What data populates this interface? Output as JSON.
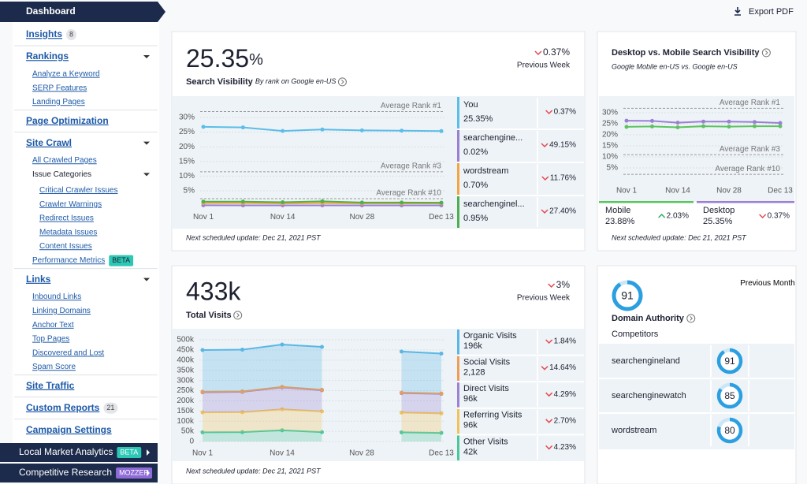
{
  "header": {
    "export": "Export PDF"
  },
  "sidebar": {
    "title": "Dashboard",
    "items": [
      {
        "label": "Insights",
        "badge": "8"
      },
      {
        "label": "Rankings",
        "children": [
          {
            "label": "Analyze a Keyword"
          },
          {
            "label": "SERP Features"
          },
          {
            "label": "Landing Pages"
          }
        ]
      },
      {
        "label": "Page Optimization"
      },
      {
        "label": "Site Crawl",
        "children": [
          {
            "label": "All Crawled Pages"
          },
          {
            "label": "Issue Categories",
            "children": [
              {
                "label": "Critical Crawler Issues"
              },
              {
                "label": "Crawler Warnings"
              },
              {
                "label": "Redirect Issues"
              },
              {
                "label": "Metadata Issues"
              },
              {
                "label": "Content Issues"
              }
            ]
          },
          {
            "label": "Performance Metrics",
            "badge": "BETA"
          }
        ]
      },
      {
        "label": "Links",
        "children": [
          {
            "label": "Inbound Links"
          },
          {
            "label": "Linking Domains"
          },
          {
            "label": "Anchor Text"
          },
          {
            "label": "Top Pages"
          },
          {
            "label": "Discovered and Lost"
          },
          {
            "label": "Spam Score"
          }
        ]
      },
      {
        "label": "Site Traffic"
      },
      {
        "label": "Custom Reports",
        "badge": "21"
      },
      {
        "label": "Campaign Settings"
      }
    ],
    "footer_items": [
      {
        "label": "Local Market Analytics",
        "badge": "BETA"
      },
      {
        "label": "Competitive Research",
        "badge": "MOZZER"
      }
    ]
  },
  "search_visibility": {
    "value": "25.35",
    "unit": "%",
    "title": "Search Visibility",
    "subtitle": "By rank on Google en-US",
    "change": "0.37%",
    "direction": "down",
    "change_period": "Previous Week",
    "footer": "Next scheduled update: Dec 21, 2021 PST",
    "chart": {
      "type": "line",
      "x": [
        "Nov 1",
        null,
        "Nov 14",
        null,
        "Nov 28",
        null,
        "Dec 13"
      ],
      "ylim": [
        0,
        35
      ],
      "yticks": [
        {
          "value": 5,
          "label": "5%"
        },
        {
          "value": 10,
          "label": "10%"
        },
        {
          "value": 15,
          "label": "15%"
        },
        {
          "value": 20,
          "label": "20%"
        },
        {
          "value": 25,
          "label": "25%"
        },
        {
          "value": 30,
          "label": "30%"
        }
      ],
      "reference_lines": [
        {
          "label": "Average Rank #1",
          "value": 32
        },
        {
          "label": "Average Rank #3",
          "value": 11.5
        },
        {
          "label": "Average Rank #10",
          "value": 2.3
        }
      ],
      "series": [
        {
          "name": "You",
          "color": "#5bbde8",
          "values": [
            26.8,
            26.6,
            25.4,
            25.9,
            25.6,
            25.5,
            25.35
          ],
          "summary": "25.35%",
          "change": "0.37%",
          "direction": "down"
        },
        {
          "name": "searchengine...",
          "color": "#9b7fd4",
          "values": [
            0.05,
            0.04,
            0.03,
            0.03,
            0.02,
            0.02,
            0.02
          ],
          "summary": "0.02%",
          "change": "49.15%",
          "direction": "down"
        },
        {
          "name": "wordstream",
          "color": "#f2a541",
          "values": [
            0.8,
            0.8,
            0.7,
            0.8,
            0.7,
            0.7,
            0.7
          ],
          "summary": "0.70%",
          "change": "11.76%",
          "direction": "down"
        },
        {
          "name": "searchenginel...",
          "color": "#4cb050",
          "values": [
            1.3,
            1.3,
            1.1,
            1.4,
            1.0,
            1.0,
            0.95
          ],
          "summary": "0.95%",
          "change": "27.40%",
          "direction": "down"
        }
      ]
    }
  },
  "desktop_mobile": {
    "title": "Desktop vs. Mobile Search Visibility",
    "subtitle": "Google Mobile en-US vs. Google en-US",
    "footer": "Next scheduled update: Dec 21, 2021 PST",
    "chart": {
      "type": "line",
      "x": [
        "Nov 1",
        null,
        "Nov 14",
        null,
        "Nov 28",
        null,
        "Dec 13"
      ],
      "ylim": [
        0,
        35
      ],
      "yticks": [
        {
          "value": 5,
          "label": "5%"
        },
        {
          "value": 10,
          "label": "10%"
        },
        {
          "value": 15,
          "label": "15%"
        },
        {
          "value": 20,
          "label": "20%"
        },
        {
          "value": 25,
          "label": "25%"
        },
        {
          "value": 30,
          "label": "30%"
        }
      ],
      "reference_lines": [
        {
          "label": "Average Rank #1",
          "value": 32
        },
        {
          "label": "Average Rank #3",
          "value": 11
        },
        {
          "label": "Average Rank #10",
          "value": 2.1
        }
      ],
      "series": [
        {
          "name": "Mobile",
          "color": "#5cc35f",
          "values": [
            23.6,
            23.8,
            23.4,
            23.9,
            23.7,
            23.9,
            23.88
          ],
          "summary": "23.88%",
          "change": "2.03%",
          "direction": "up"
        },
        {
          "name": "Desktop",
          "color": "#9b7fd4",
          "values": [
            26.4,
            26.3,
            25.5,
            26,
            26,
            25.8,
            25.35
          ],
          "summary": "25.35%",
          "change": "0.37%",
          "direction": "down"
        }
      ]
    }
  },
  "total_visits": {
    "value": "433k",
    "title": "Total Visits",
    "change": "3%",
    "direction": "down",
    "change_period": "Previous Week",
    "footer": "Next scheduled update: Dec 21, 2021 PST",
    "chart": {
      "type": "area",
      "stacked": true,
      "x": [
        "Nov 1",
        null,
        "Nov 14",
        null,
        "Nov 28",
        null,
        "Dec 13"
      ],
      "ylim": [
        0,
        540000
      ],
      "yticks": [
        0,
        {
          "value": 50000,
          "label": "50k"
        },
        {
          "value": 100000,
          "label": "100k"
        },
        {
          "value": 150000,
          "label": "150k"
        },
        {
          "value": 200000,
          "label": "200k"
        },
        {
          "value": 250000,
          "label": "250k"
        },
        {
          "value": 300000,
          "label": "300k"
        },
        {
          "value": 350000,
          "label": "350k"
        },
        {
          "value": 400000,
          "label": "400k"
        },
        {
          "value": 450000,
          "label": "450k"
        },
        {
          "value": 500000,
          "label": "500k"
        }
      ],
      "series": [
        {
          "name": "Organic Visits",
          "color": "#5ab6e4",
          "values": [
            205000,
            205000,
            208000,
            211000,
            null,
            202000,
            196000
          ],
          "summary": "196k",
          "change": "1.84%",
          "direction": "down"
        },
        {
          "name": "Social Visits",
          "color": "#ef9d56",
          "values": [
            2500,
            2400,
            2600,
            2300,
            null,
            2200,
            2128
          ],
          "summary": "2,128",
          "change": "14.64%",
          "direction": "down"
        },
        {
          "name": "Direct Visits",
          "color": "#9c82d3",
          "values": [
            99000,
            100000,
            108000,
            104000,
            null,
            96000,
            96000
          ],
          "summary": "96k",
          "change": "4.29%",
          "direction": "down"
        },
        {
          "name": "Referring Visits",
          "color": "#f0c35a",
          "values": [
            98000,
            98000,
            103000,
            102000,
            null,
            97000,
            96000
          ],
          "summary": "96k",
          "change": "2.70%",
          "direction": "down"
        },
        {
          "name": "Other Visits",
          "color": "#4cc79c",
          "values": [
            45000,
            46000,
            55000,
            46000,
            null,
            45000,
            42000
          ],
          "summary": "42k",
          "change": "4.23%",
          "direction": "down"
        }
      ]
    }
  },
  "domain_authority": {
    "score": 91,
    "title": "Domain Authority",
    "period": "Previous Month",
    "competitors_label": "Competitors",
    "competitors": [
      {
        "name": "searchengineland",
        "score": 91
      },
      {
        "name": "searchenginewatch",
        "score": 85
      },
      {
        "name": "wordstream",
        "score": 80
      }
    ]
  }
}
